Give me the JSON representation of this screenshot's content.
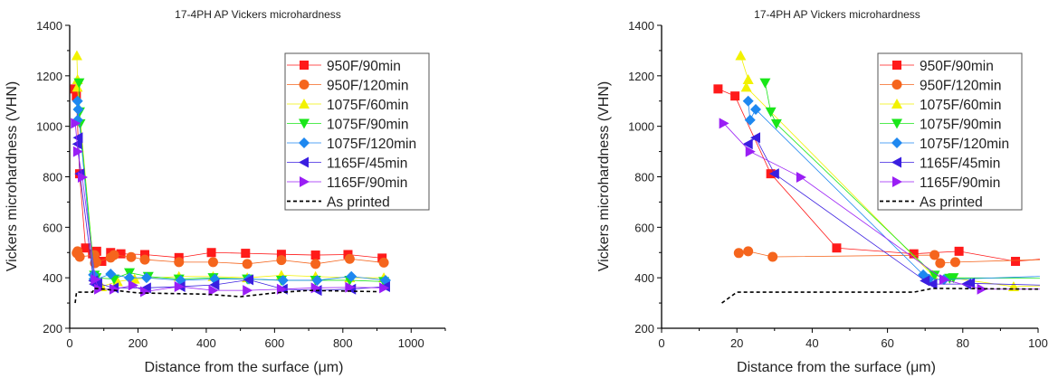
{
  "chart_data": [
    {
      "type": "line",
      "title": "17-4PH AP Vickers microhardness",
      "xlabel": "Distance from the surface (μm)",
      "ylabel": "Vickers microhardness (VHN)",
      "xlim": [
        0,
        1100
      ],
      "ylim": [
        200,
        1400
      ],
      "xticks": [
        0,
        200,
        400,
        600,
        800,
        1000
      ],
      "yticks": [
        200,
        400,
        600,
        800,
        1000,
        1200,
        1400
      ],
      "legend": "top-right"
    },
    {
      "type": "line",
      "title": "17-4PH AP Vickers microhardness",
      "xlabel": "Distance from the surface (μm)",
      "ylabel": "Vickers microhardness (VHN)",
      "xlim": [
        0,
        100
      ],
      "ylim": [
        200,
        1400
      ],
      "xticks": [
        0,
        20,
        40,
        60,
        80,
        100
      ],
      "yticks": [
        200,
        400,
        600,
        800,
        1000,
        1200,
        1400
      ],
      "legend": "top-right"
    }
  ],
  "series": [
    {
      "name": "950F/90min",
      "color": "#ff1a1a",
      "marker": "square",
      "points": [
        [
          15,
          1148
        ],
        [
          19.5,
          1120
        ],
        [
          29,
          812
        ],
        [
          46.5,
          518
        ],
        [
          67,
          495
        ],
        [
          79,
          505
        ],
        [
          94,
          465
        ],
        [
          120,
          500
        ],
        [
          150,
          495
        ],
        [
          220,
          492
        ],
        [
          320,
          480
        ],
        [
          415,
          500
        ],
        [
          515,
          497
        ],
        [
          620,
          493
        ],
        [
          720,
          490
        ],
        [
          815,
          492
        ],
        [
          915,
          478
        ]
      ]
    },
    {
      "name": "950F/120min",
      "color": "#f5651d",
      "marker": "circle",
      "points": [
        [
          20.5,
          498
        ],
        [
          23,
          505
        ],
        [
          29.5,
          483
        ],
        [
          72.5,
          490
        ],
        [
          74,
          458
        ],
        [
          78,
          462
        ],
        [
          120,
          480
        ],
        [
          130,
          490
        ],
        [
          180,
          482
        ],
        [
          220,
          472
        ],
        [
          320,
          462
        ],
        [
          420,
          462
        ],
        [
          520,
          455
        ],
        [
          620,
          470
        ],
        [
          720,
          455
        ],
        [
          820,
          475
        ],
        [
          920,
          460
        ]
      ]
    },
    {
      "name": "1075F/60min",
      "color": "#f2f200",
      "marker": "triangle-up",
      "points": [
        [
          21,
          1280
        ],
        [
          23,
          1185
        ],
        [
          22.5,
          1155
        ],
        [
          72,
          410
        ],
        [
          93.5,
          365
        ],
        [
          140,
          385
        ],
        [
          190,
          395
        ],
        [
          320,
          405
        ],
        [
          420,
          405
        ],
        [
          520,
          400
        ],
        [
          620,
          410
        ],
        [
          720,
          405
        ],
        [
          820,
          400
        ],
        [
          920,
          400
        ]
      ]
    },
    {
      "name": "1075F/90min",
      "color": "#19e619",
      "marker": "triangle-down",
      "points": [
        [
          27.5,
          1172
        ],
        [
          29,
          1057
        ],
        [
          30.5,
          1010
        ],
        [
          72.5,
          410
        ],
        [
          76.5,
          398
        ],
        [
          77.5,
          400
        ],
        [
          130,
          395
        ],
        [
          175,
          420
        ],
        [
          230,
          405
        ],
        [
          320,
          395
        ],
        [
          420,
          400
        ],
        [
          520,
          395
        ],
        [
          620,
          390
        ],
        [
          720,
          390
        ],
        [
          820,
          390
        ],
        [
          920,
          385
        ]
      ]
    },
    {
      "name": "1075F/120min",
      "color": "#1e88f0",
      "marker": "diamond",
      "points": [
        [
          23,
          1100
        ],
        [
          23.5,
          1025
        ],
        [
          25,
          1067
        ],
        [
          69.5,
          412
        ],
        [
          71,
          395
        ],
        [
          75,
          393
        ],
        [
          120,
          415
        ],
        [
          175,
          400
        ],
        [
          225,
          400
        ],
        [
          325,
          390
        ],
        [
          425,
          395
        ],
        [
          525,
          395
        ],
        [
          625,
          390
        ],
        [
          725,
          390
        ],
        [
          825,
          405
        ],
        [
          925,
          390
        ]
      ]
    },
    {
      "name": "1165F/45min",
      "color": "#3a1ee0",
      "marker": "triangle-left",
      "points": [
        [
          23,
          930
        ],
        [
          25,
          955
        ],
        [
          30,
          812
        ],
        [
          70,
          388
        ],
        [
          72,
          375
        ],
        [
          81,
          375
        ],
        [
          82,
          378
        ],
        [
          130,
          360
        ],
        [
          225,
          360
        ],
        [
          325,
          365
        ],
        [
          425,
          372
        ],
        [
          525,
          392
        ],
        [
          625,
          355
        ],
        [
          725,
          350
        ],
        [
          825,
          355
        ],
        [
          925,
          365
        ]
      ]
    },
    {
      "name": "1165F/90min",
      "color": "#9a1ef5",
      "marker": "triangle-right",
      "points": [
        [
          16.5,
          1012
        ],
        [
          23.5,
          900
        ],
        [
          37,
          798
        ],
        [
          75,
          393
        ],
        [
          85,
          355
        ],
        [
          130,
          355
        ],
        [
          185,
          370
        ],
        [
          220,
          345
        ],
        [
          320,
          365
        ],
        [
          420,
          350
        ],
        [
          520,
          350
        ],
        [
          620,
          355
        ],
        [
          720,
          360
        ],
        [
          820,
          362
        ],
        [
          920,
          360
        ]
      ]
    },
    {
      "name": "As printed",
      "color": "#000000",
      "marker": "none",
      "dashed": true,
      "points": [
        [
          16,
          300
        ],
        [
          20,
          343
        ],
        [
          67,
          343
        ],
        [
          72,
          358
        ],
        [
          100,
          355
        ],
        [
          200,
          340
        ],
        [
          400,
          335
        ],
        [
          500,
          325
        ],
        [
          600,
          340
        ],
        [
          700,
          350
        ],
        [
          900,
          345
        ]
      ]
    }
  ]
}
